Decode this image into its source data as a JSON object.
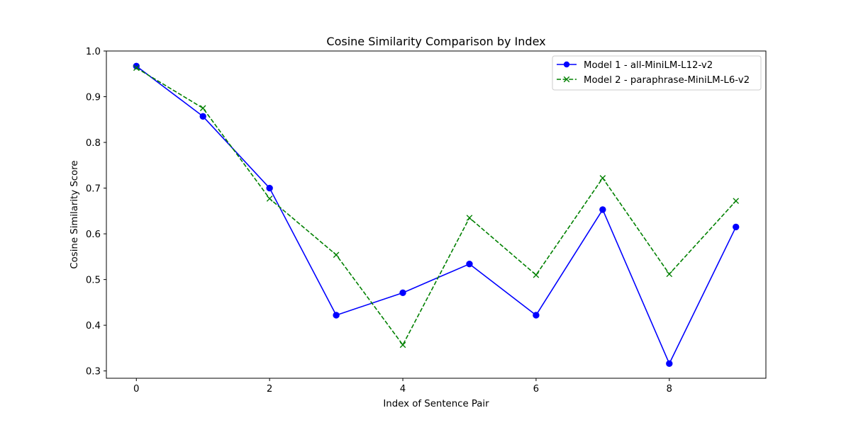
{
  "chart_data": {
    "type": "line",
    "title": "Cosine Similarity Comparison by Index",
    "xlabel": "Index of Sentence Pair",
    "ylabel": "Cosine Similarity Score",
    "x": [
      0,
      1,
      2,
      3,
      4,
      5,
      6,
      7,
      8,
      9
    ],
    "xlim": [
      -0.45,
      9.45
    ],
    "ylim": [
      0.284,
      1.0
    ],
    "xticks": [
      0,
      2,
      4,
      6,
      8
    ],
    "yticks": [
      0.3,
      0.4,
      0.5,
      0.6,
      0.7,
      0.8,
      0.9,
      1.0
    ],
    "xtick_labels": [
      "0",
      "2",
      "4",
      "6",
      "8"
    ],
    "ytick_labels": [
      "0.3",
      "0.4",
      "0.5",
      "0.6",
      "0.7",
      "0.8",
      "0.9",
      "1.0"
    ],
    "grid": false,
    "legend_position": "top-right",
    "series": [
      {
        "name": "Model 1 - all-MiniLM-L12-v2",
        "color": "#0000ff",
        "line_style": "solid",
        "marker": "circle",
        "values": [
          0.967,
          0.857,
          0.7,
          0.422,
          0.471,
          0.534,
          0.422,
          0.653,
          0.316,
          0.615
        ]
      },
      {
        "name": "Model 2 - paraphrase-MiniLM-L6-v2",
        "color": "#008000",
        "line_style": "dashed",
        "marker": "x",
        "values": [
          0.963,
          0.875,
          0.677,
          0.554,
          0.357,
          0.635,
          0.51,
          0.722,
          0.512,
          0.672
        ]
      }
    ]
  }
}
